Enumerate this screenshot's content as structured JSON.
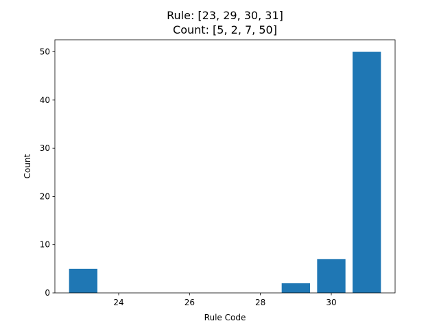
{
  "chart_data": {
    "type": "bar",
    "title_lines": [
      "Rule: [23, 29, 30, 31]",
      "Count: [5, 2, 7, 50]"
    ],
    "xlabel": "Rule Code",
    "ylabel": "Count",
    "x": [
      23,
      29,
      30,
      31
    ],
    "values": [
      5,
      2,
      7,
      50
    ],
    "bar_width": 0.8,
    "xlim": [
      22.2,
      31.8
    ],
    "ylim": [
      0,
      52.5
    ],
    "xticks": [
      24,
      26,
      28,
      30
    ],
    "yticks": [
      0,
      10,
      20,
      30,
      40,
      50
    ],
    "bar_color": "#1f77b4",
    "grid": false,
    "legend": "none"
  }
}
